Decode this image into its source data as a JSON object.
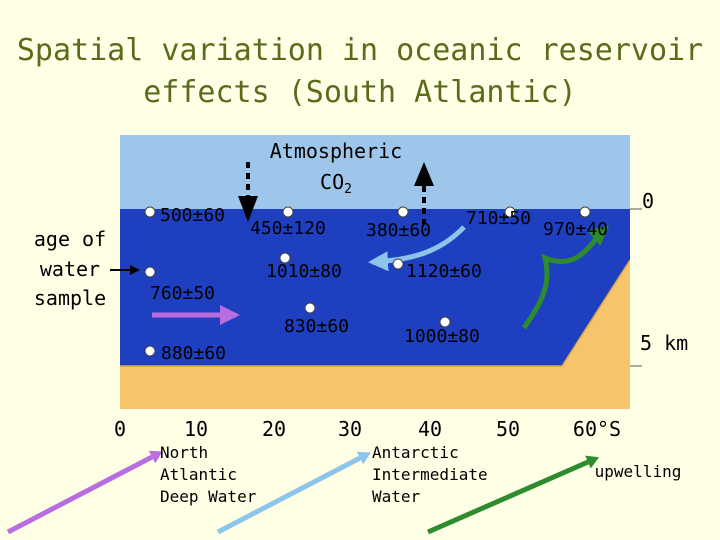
{
  "title": {
    "line1": "Spatial variation in oceanic reservoir",
    "line2": "effects (South Atlantic)"
  },
  "atmosphere": {
    "line1": "Atmospheric",
    "line2": "CO",
    "subscript": "2"
  },
  "left_label": {
    "line1": "age of",
    "line2": "water",
    "line3": "sample"
  },
  "depth_labels": {
    "surface": "0",
    "bottom": "5 km"
  },
  "samples": [
    {
      "label": "500±60"
    },
    {
      "label": "450±120"
    },
    {
      "label": "380±60"
    },
    {
      "label": "710±50"
    },
    {
      "label": "970±40"
    },
    {
      "label": "760±50"
    },
    {
      "label": "1010±80"
    },
    {
      "label": "1120±60"
    },
    {
      "label": "830±60"
    },
    {
      "label": "1000±80"
    },
    {
      "label": "880±60"
    }
  ],
  "latitude_ticks": [
    "0",
    "10",
    "20",
    "30",
    "40",
    "50",
    "60°S"
  ],
  "legend": [
    {
      "label_lines": [
        "North",
        "Atlantic",
        "Deep Water"
      ],
      "color": "#b86ee0"
    },
    {
      "label_lines": [
        "Antarctic",
        "Intermediate",
        "Water"
      ],
      "color": "#8cc4ea"
    },
    {
      "label_lines": [
        "upwelling"
      ],
      "color": "#2e8b2e"
    }
  ],
  "colors": {
    "background": "#ffffe6",
    "title": "#5c6b1b",
    "sky": "#9ec5ea",
    "ocean": "#1e3fbf",
    "seafloor": "#f6c56b",
    "nadw_arrow": "#b86ee0",
    "aaiw_arrow": "#8cc4ea",
    "upwelling_arrow": "#2e8b2e"
  }
}
